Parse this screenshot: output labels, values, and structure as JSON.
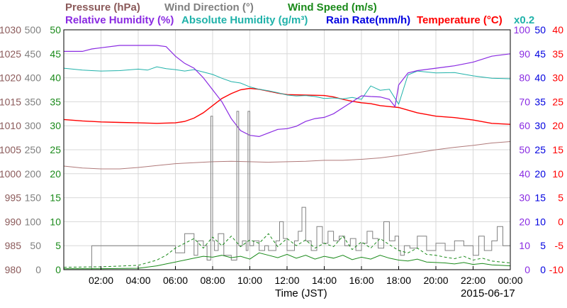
{
  "chart_data": {
    "type": "line",
    "date": "2015-06-17",
    "xlabel": "Time (JST)",
    "x_ticks": [
      "02:00",
      "04:00",
      "06:00",
      "08:00",
      "10:00",
      "12:00",
      "14:00",
      "16:00",
      "18:00",
      "20:00",
      "22:00",
      "00:00"
    ],
    "x_domain_hours": [
      0,
      24
    ],
    "grid": true,
    "legend_note": "x0.2",
    "axes": {
      "pressure": {
        "label": "Pressure (hPa)",
        "color": "#8b5a5a",
        "range": [
          980,
          1030
        ],
        "ticks": [
          "980",
          "985",
          "990",
          "995",
          "1000",
          "1005",
          "1010",
          "1015",
          "1020",
          "1025",
          "1030"
        ]
      },
      "wind_dir": {
        "label": "Wind Direction (°)",
        "color": "#808080",
        "range": [
          0,
          500
        ],
        "ticks": [
          "0",
          "50",
          "100",
          "150",
          "200",
          "250",
          "300",
          "350",
          "400",
          "450",
          "500"
        ]
      },
      "wind_speed": {
        "label": "Wind Speed (m/s)",
        "color": "#1a8a1a",
        "range": [
          0,
          50
        ],
        "ticks": [
          "0",
          "5",
          "10",
          "15",
          "20",
          "25",
          "30",
          "35",
          "40",
          "45",
          "50"
        ]
      },
      "rel_hum": {
        "label": "Relative Humidity (%)",
        "color": "#8a2be2",
        "range": [
          0,
          100
        ],
        "ticks": [
          "0",
          "10",
          "20",
          "30",
          "40",
          "50",
          "60",
          "70",
          "80",
          "90",
          "100"
        ]
      },
      "abs_hum": {
        "label": "Absolute Humidity (g/m³)",
        "color": "#20b2aa"
      },
      "rain": {
        "label": "Rain Rate(mm/h)",
        "color": "#0000e0",
        "range": [
          0,
          50
        ],
        "ticks": [
          "0",
          "5",
          "10",
          "15",
          "20",
          "25",
          "30",
          "35",
          "40",
          "45",
          "50"
        ]
      },
      "temp": {
        "label": "Temperature (°C)",
        "color": "#ff0000",
        "range": [
          -10,
          40
        ],
        "ticks": [
          "-10",
          "-5",
          "0",
          "5",
          "10",
          "15",
          "20",
          "25",
          "30",
          "35",
          "40"
        ]
      }
    },
    "series": [
      {
        "name": "Temperature (°C)",
        "axis": "temp",
        "color": "#ff0000",
        "width": 1.4,
        "x": [
          0,
          1,
          2,
          3,
          4,
          5,
          6,
          6.5,
          7,
          7.5,
          8,
          8.5,
          9,
          9.5,
          10,
          10.5,
          11,
          11.5,
          12,
          13,
          14,
          14.5,
          15,
          15.5,
          16,
          16.5,
          17,
          17.5,
          18,
          19,
          20,
          21,
          22,
          23,
          24
        ],
        "y": [
          21.3,
          21,
          20.8,
          20.7,
          20.6,
          20.5,
          20.6,
          20.9,
          21.6,
          22.7,
          24.2,
          25.7,
          26.7,
          27.5,
          27.8,
          27.6,
          27.2,
          26.8,
          26.5,
          26.4,
          26.3,
          26,
          25.5,
          25.1,
          24.8,
          24.6,
          24.2,
          24.0,
          23.8,
          22.7,
          22.0,
          21.7,
          21.2,
          20.5,
          20.3
        ]
      },
      {
        "name": "Absolute Humidity (g/m³)",
        "axis": "temp",
        "color": "#20b2aa",
        "width": 1,
        "x": [
          0,
          1,
          2,
          3,
          4,
          4.5,
          5,
          5.5,
          6,
          6.5,
          7,
          7.5,
          8,
          8.5,
          9,
          9.5,
          10,
          10.5,
          11,
          11.5,
          12,
          12.5,
          13,
          13.5,
          14,
          14.5,
          15,
          15.5,
          16,
          16.5,
          17,
          17.5,
          18,
          18.5,
          19,
          20,
          21,
          22,
          23,
          24
        ],
        "y": [
          32,
          31.6,
          31.4,
          31.5,
          31.8,
          31.6,
          32.3,
          31.9,
          31.7,
          31.4,
          31.7,
          31.2,
          30.7,
          29.9,
          29.2,
          28.9,
          28.1,
          27.6,
          27.3,
          26.9,
          26.4,
          26.2,
          26.3,
          26.1,
          25.7,
          25.8,
          25.6,
          25.9,
          25.5,
          28.3,
          27.4,
          27.6,
          24.5,
          30.6,
          31.4,
          31.0,
          31.1,
          30.4,
          29.9,
          29.8
        ]
      },
      {
        "name": "Relative Humidity (%)",
        "axis": "rel_hum",
        "color": "#8a2be2",
        "width": 1.2,
        "x": [
          0,
          1,
          1.5,
          2,
          3,
          4,
          5,
          5.5,
          6,
          6.5,
          7,
          7.5,
          8,
          8.5,
          9,
          9.5,
          10,
          10.5,
          11,
          11.5,
          12,
          12.5,
          13,
          13.5,
          14,
          14.5,
          15,
          15.5,
          16,
          16.5,
          17,
          17.5,
          17.8,
          18,
          18.5,
          19,
          20,
          21,
          22,
          23,
          24
        ],
        "y": [
          91,
          91,
          92,
          92.5,
          93.5,
          93.5,
          93.5,
          93,
          89,
          86,
          84,
          80,
          75,
          70,
          63,
          58,
          56,
          55.5,
          57,
          58.5,
          58.8,
          59.8,
          61.8,
          63,
          63.5,
          65,
          67.5,
          70,
          72.5,
          72.2,
          72,
          71,
          68,
          77,
          82,
          83,
          84,
          85,
          86.5,
          89,
          90
        ]
      },
      {
        "name": "Pressure (hPa)",
        "axis": "pressure",
        "color": "#b07a7a",
        "width": 1,
        "x": [
          0,
          1,
          2,
          3,
          4,
          5,
          6,
          7,
          8,
          9,
          10,
          11,
          12,
          13,
          14,
          15,
          16,
          17,
          18,
          19,
          20,
          21,
          22,
          23,
          24
        ],
        "y": [
          1001.6,
          1001.2,
          1001.0,
          1001.0,
          1001.3,
          1001.7,
          1002.1,
          1002.3,
          1002.5,
          1002.6,
          1002.5,
          1002.4,
          1002.5,
          1002.6,
          1002.8,
          1002.8,
          1003.0,
          1003.3,
          1003.8,
          1004.4,
          1005.0,
          1005.5,
          1005.9,
          1006.4,
          1006.7
        ]
      },
      {
        "name": "Wind Direction (°)",
        "axis": "wind_dir",
        "color": "#808080",
        "width": 1,
        "style": "step",
        "x": [
          0,
          1.4,
          1.5,
          6.0,
          6.0,
          6.5,
          7.0,
          7.2,
          7.5,
          7.7,
          7.9,
          8.0,
          8.1,
          8.3,
          8.6,
          9.0,
          9.3,
          9.4,
          9.6,
          9.8,
          9.9,
          10.0,
          10.2,
          10.5,
          10.8,
          11.0,
          11.4,
          11.6,
          11.8,
          12.0,
          12.4,
          12.6,
          12.8,
          13.0,
          13.3,
          13.6,
          13.9,
          14.2,
          14.5,
          14.8,
          15.1,
          15.4,
          15.7,
          16.0,
          16.3,
          16.6,
          16.9,
          17.2,
          17.5,
          17.8,
          18.0,
          18.1,
          18.3,
          18.6,
          19.0,
          19.5,
          20.0,
          20.5,
          21.0,
          21.5,
          22.0,
          22.3,
          22.6,
          23.0,
          23.3,
          23.6,
          24.0
        ],
        "y": [
          0,
          0,
          50,
          50,
          35,
          75,
          30,
          60,
          50,
          20,
          320,
          60,
          40,
          75,
          30,
          20,
          330,
          50,
          60,
          40,
          330,
          50,
          60,
          40,
          50,
          40,
          60,
          100,
          65,
          40,
          60,
          80,
          130,
          60,
          40,
          90,
          55,
          80,
          60,
          70,
          50,
          65,
          40,
          55,
          80,
          65,
          45,
          100,
          60,
          70,
          40,
          30,
          50,
          45,
          70,
          40,
          55,
          40,
          60,
          50,
          30,
          70,
          40,
          60,
          90,
          50,
          40
        ]
      },
      {
        "name": "Wind Speed (m/s)",
        "axis": "wind_speed",
        "color": "#1a8a1a",
        "width": 1,
        "x": [
          0,
          2,
          4,
          5,
          5.5,
          6,
          6.5,
          7,
          7.5,
          8,
          8.5,
          9,
          9.5,
          10,
          10.5,
          11,
          11.5,
          12,
          12.5,
          13,
          13.5,
          14,
          14.5,
          15,
          15.5,
          16,
          16.5,
          17,
          17.5,
          18,
          18.5,
          19,
          19.5,
          20,
          20.5,
          21,
          21.5,
          22,
          22.5,
          23,
          23.5,
          24
        ],
        "y": [
          0.2,
          0.2,
          0.3,
          0.8,
          1.2,
          1.6,
          2.0,
          2.4,
          2.8,
          2.6,
          3.0,
          2.5,
          2.8,
          2.2,
          3.5,
          3.0,
          2.5,
          3.2,
          2.4,
          3.0,
          2.2,
          2.8,
          2.4,
          3.0,
          2.1,
          2.6,
          2.2,
          3.0,
          2.4,
          2.0,
          1.8,
          2.2,
          1.6,
          1.5,
          1.4,
          1.2,
          1.5,
          1.1,
          1.3,
          1.0,
          0.9,
          0.8
        ]
      },
      {
        "name": "Wind Speed gust",
        "axis": "wind_speed",
        "color": "#1a8a1a",
        "width": 1,
        "style": "dashed",
        "x": [
          0,
          2,
          4,
          5,
          5.5,
          6,
          6.5,
          7,
          7.5,
          8,
          8.5,
          9,
          9.5,
          10,
          10.5,
          11,
          11.5,
          12,
          12.5,
          13,
          13.5,
          14,
          14.5,
          15,
          15.5,
          16,
          16.5,
          17,
          17.5,
          18,
          18.5,
          19,
          19.5,
          20,
          20.5,
          21,
          21.5,
          22,
          22.5,
          23,
          23.5,
          24
        ],
        "y": [
          0.5,
          0.6,
          0.9,
          2.0,
          3.0,
          4.5,
          5.5,
          6.5,
          4.5,
          6.8,
          5.0,
          7.0,
          4.8,
          6.2,
          5.5,
          7.5,
          4.8,
          6.5,
          5.0,
          6.2,
          4.5,
          5.5,
          4.8,
          7.0,
          4.2,
          5.8,
          4.5,
          6.5,
          5.2,
          4.0,
          3.5,
          4.5,
          3.2,
          3.0,
          2.6,
          2.3,
          2.8,
          2.0,
          2.4,
          1.8,
          1.6,
          1.4
        ]
      },
      {
        "name": "Rain Rate(mm/h)",
        "axis": "rain",
        "color": "#0000e0",
        "width": 1,
        "x": [
          0,
          24
        ],
        "y": [
          0,
          0
        ]
      }
    ]
  }
}
